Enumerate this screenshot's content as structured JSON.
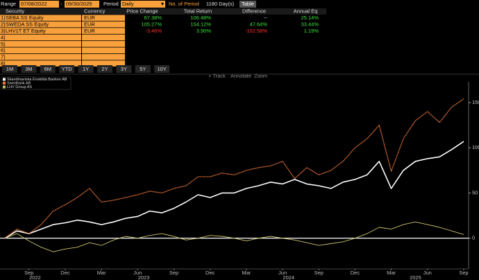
{
  "toolbar": {
    "range_label": "Range",
    "start_date": "07/08/2022",
    "separator": "-",
    "end_date": "09/30/2025",
    "period_label": "Period",
    "period": "Daily",
    "num_periods_label": "No. of Period",
    "num_periods": "1180 Day(s)",
    "view_button": "Table"
  },
  "table": {
    "headers": [
      "Security",
      "Currency",
      "Price Change",
      "Total Return",
      "Difference",
      "Annual Eq"
    ],
    "rows": [
      {
        "number": "1)",
        "cells": [
          "SEBA SS Equity",
          "EUR",
          "67.38%",
          "106.48%",
          "--",
          "25.14%"
        ]
      },
      {
        "number": "2)",
        "cells": [
          "SWEDA SS Equity",
          "EUR",
          "105.27%",
          "154.12%",
          "47.64%",
          "33.44%"
        ]
      },
      {
        "number": "3)",
        "cells": [
          "LHV1T ET Equity",
          "EUR",
          "-3.46%",
          "3.90%",
          "-102.58%",
          "1.19%"
        ]
      },
      {
        "number": "4)"
      },
      {
        "number": "5)"
      },
      {
        "number": "6)"
      },
      {
        "number": "7)"
      },
      {
        "number": "8)"
      }
    ]
  },
  "range_buttons": [
    "1M",
    "3M",
    "6M",
    "YTD",
    "1Y",
    "2Y",
    "3Y",
    "5Y",
    "10Y"
  ],
  "chart_tools": [
    "+ Track",
    "Annotate",
    "Zoom"
  ],
  "chart_data": {
    "type": "line",
    "x": [
      "2022-07",
      "2022-08",
      "2022-09",
      "2022-10",
      "2022-11",
      "2022-12",
      "2023-01",
      "2023-02",
      "2023-03",
      "2023-04",
      "2023-05",
      "2023-06",
      "2023-07",
      "2023-08",
      "2023-09",
      "2023-10",
      "2023-11",
      "2023-12",
      "2024-01",
      "2024-02",
      "2024-03",
      "2024-04",
      "2024-05",
      "2024-06",
      "2024-07",
      "2024-08",
      "2024-09",
      "2024-10",
      "2024-11",
      "2024-12",
      "2025-01",
      "2025-02",
      "2025-03",
      "2025-04",
      "2025-05",
      "2025-06",
      "2025-07",
      "2025-08",
      "2025-09"
    ],
    "series": [
      {
        "name": "Skandinaviska Enskilda Banken AB",
        "color": "#ffffff",
        "values": [
          0,
          8,
          5,
          10,
          15,
          17,
          20,
          18,
          15,
          18,
          22,
          24,
          30,
          28,
          33,
          40,
          48,
          45,
          50,
          50,
          55,
          58,
          62,
          60,
          65,
          60,
          58,
          55,
          62,
          65,
          70,
          85,
          55,
          75,
          85,
          88,
          90,
          98,
          107
        ]
      },
      {
        "name": "Swedbank AB",
        "color": "#f0783c",
        "values": [
          0,
          10,
          5,
          15,
          30,
          37,
          45,
          55,
          40,
          42,
          45,
          48,
          52,
          50,
          55,
          58,
          68,
          68,
          72,
          70,
          75,
          78,
          80,
          85,
          66,
          78,
          70,
          75,
          85,
          100,
          110,
          125,
          74,
          110,
          130,
          140,
          128,
          145,
          154
        ]
      },
      {
        "name": "LHV Group AS",
        "color": "#c9c46a",
        "values": [
          0,
          5,
          -3,
          -10,
          -15,
          -12,
          -10,
          -5,
          -8,
          -2,
          2,
          0,
          3,
          5,
          2,
          -2,
          0,
          3,
          2,
          0,
          -3,
          0,
          2,
          0,
          -2,
          -5,
          -8,
          -6,
          -4,
          0,
          5,
          12,
          10,
          15,
          18,
          15,
          12,
          8,
          4
        ]
      }
    ],
    "ylim": [
      -34,
      173
    ],
    "yticks": [
      0,
      50,
      100,
      150
    ],
    "xticks": [
      {
        "value": "2022-09",
        "label": "Sep"
      },
      {
        "value": "2022-12",
        "label": "Dec"
      },
      {
        "value": "2023-03",
        "label": "Mar"
      },
      {
        "value": "2023-06",
        "label": "Jun"
      },
      {
        "value": "2023-09",
        "label": "Sep"
      },
      {
        "value": "2023-12",
        "label": "Dec"
      },
      {
        "value": "2024-03",
        "label": "Mar"
      },
      {
        "value": "2024-06",
        "label": "Jun"
      },
      {
        "value": "2024-09",
        "label": "Sep"
      },
      {
        "value": "2024-12",
        "label": "Dec"
      },
      {
        "value": "2025-03",
        "label": "Mar"
      },
      {
        "value": "2025-06",
        "label": "Jun"
      },
      {
        "value": "2025-09",
        "label": "Sep"
      }
    ],
    "x_year_labels": [
      2022,
      2023,
      2024,
      2025
    ],
    "grid": false
  }
}
